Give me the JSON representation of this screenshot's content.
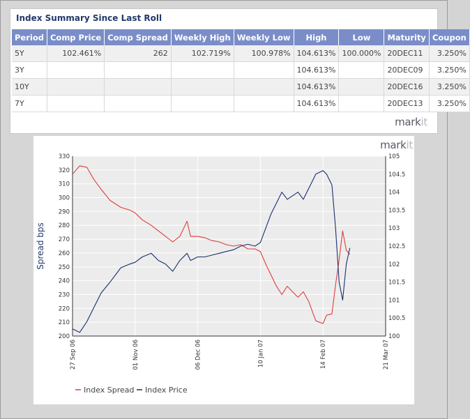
{
  "summary": {
    "title": "Index Summary Since Last Roll",
    "columns": [
      "Period",
      "Comp Price",
      "Comp Spread",
      "Weekly High",
      "Weekly Low",
      "High",
      "Low",
      "Maturity",
      "Coupon"
    ],
    "rows": [
      [
        "5Y",
        "102.461%",
        "262",
        "102.719%",
        "100.978%",
        "104.613%",
        "100.000%",
        "20DEC11",
        "3.250%"
      ],
      [
        "3Y",
        "",
        "",
        "",
        "",
        "104.613%",
        "",
        "20DEC09",
        "3.250%"
      ],
      [
        "10Y",
        "",
        "",
        "",
        "",
        "104.613%",
        "",
        "20DEC16",
        "3.250%"
      ],
      [
        "7Y",
        "",
        "",
        "",
        "",
        "104.613%",
        "",
        "20DEC13",
        "3.250%"
      ]
    ],
    "logo": {
      "prefix": "mark",
      "suffix": "it"
    }
  },
  "chart_logo": {
    "prefix": "mark",
    "suffix": "it"
  },
  "colors": {
    "spread": "#e03c3c",
    "price": "#1c2f6e",
    "header_bg": "#7a8dc8",
    "title": "#23396b"
  },
  "chart_data": {
    "type": "line",
    "ylabel": "Spread bps",
    "x_tick_labels": [
      "27 Sep 06",
      "01 Nov 06",
      "06 Dec 06",
      "10 Jan 07",
      "14 Feb 07",
      "21 Mar 07"
    ],
    "left_axis": {
      "min": 200,
      "max": 330,
      "ticks": [
        200,
        210,
        220,
        230,
        240,
        250,
        260,
        270,
        280,
        290,
        300,
        310,
        320,
        330
      ]
    },
    "right_axis": {
      "min": 100,
      "max": 105,
      "ticks": [
        100,
        100.5,
        101,
        101.5,
        102,
        102.5,
        103,
        103.5,
        104,
        104.5,
        105
      ]
    },
    "grid": true,
    "legend_position": "bottom-left",
    "series": [
      {
        "name": "Index Spread",
        "axis": "left",
        "points": [
          [
            "27 Sep 06",
            317
          ],
          [
            "01 Oct 06",
            323
          ],
          [
            "05 Oct 06",
            322
          ],
          [
            "09 Oct 06",
            313
          ],
          [
            "13 Oct 06",
            306
          ],
          [
            "18 Oct 06",
            298
          ],
          [
            "24 Oct 06",
            293
          ],
          [
            "29 Oct 06",
            291
          ],
          [
            "01 Nov 06",
            289
          ],
          [
            "05 Nov 06",
            284
          ],
          [
            "10 Nov 06",
            280
          ],
          [
            "14 Nov 06",
            276
          ],
          [
            "18 Nov 06",
            272
          ],
          [
            "22 Nov 06",
            268
          ],
          [
            "26 Nov 06",
            272
          ],
          [
            "30 Nov 06",
            283
          ],
          [
            "02 Dec 06",
            272
          ],
          [
            "06 Dec 06",
            272
          ],
          [
            "10 Dec 06",
            271
          ],
          [
            "14 Dec 06",
            269
          ],
          [
            "18 Dec 06",
            268
          ],
          [
            "22 Dec 06",
            266
          ],
          [
            "26 Dec 06",
            265
          ],
          [
            "30 Dec 06",
            266
          ],
          [
            "03 Jan 07",
            263
          ],
          [
            "07 Jan 07",
            263
          ],
          [
            "10 Jan 07",
            261
          ],
          [
            "13 Jan 07",
            252
          ],
          [
            "16 Jan 07",
            244
          ],
          [
            "19 Jan 07",
            236
          ],
          [
            "22 Jan 07",
            230
          ],
          [
            "25 Jan 07",
            236
          ],
          [
            "28 Jan 07",
            232
          ],
          [
            "31 Jan 07",
            228
          ],
          [
            "03 Feb 07",
            232
          ],
          [
            "06 Feb 07",
            225
          ],
          [
            "10 Feb 07",
            211
          ],
          [
            "14 Feb 07",
            209
          ],
          [
            "16 Feb 07",
            215
          ],
          [
            "19 Feb 07",
            216
          ],
          [
            "21 Feb 07",
            237
          ],
          [
            "23 Feb 07",
            255
          ],
          [
            "25 Feb 07",
            276
          ],
          [
            "27 Feb 07",
            262
          ],
          [
            "01 Mar 07",
            259
          ]
        ]
      },
      {
        "name": "Index Price",
        "axis": "right",
        "points": [
          [
            "27 Sep 06",
            100.2
          ],
          [
            "01 Oct 06",
            100.1
          ],
          [
            "05 Oct 06",
            100.4
          ],
          [
            "09 Oct 06",
            100.8
          ],
          [
            "13 Oct 06",
            101.2
          ],
          [
            "18 Oct 06",
            101.5
          ],
          [
            "24 Oct 06",
            101.9
          ],
          [
            "29 Oct 06",
            102.0
          ],
          [
            "01 Nov 06",
            102.05
          ],
          [
            "05 Nov 06",
            102.2
          ],
          [
            "10 Nov 06",
            102.3
          ],
          [
            "14 Nov 06",
            102.1
          ],
          [
            "18 Nov 06",
            102.0
          ],
          [
            "22 Nov 06",
            101.8
          ],
          [
            "26 Nov 06",
            102.1
          ],
          [
            "30 Nov 06",
            102.3
          ],
          [
            "02 Dec 06",
            102.1
          ],
          [
            "06 Dec 06",
            102.2
          ],
          [
            "10 Dec 06",
            102.2
          ],
          [
            "14 Dec 06",
            102.25
          ],
          [
            "18 Dec 06",
            102.3
          ],
          [
            "22 Dec 06",
            102.35
          ],
          [
            "26 Dec 06",
            102.4
          ],
          [
            "30 Dec 06",
            102.5
          ],
          [
            "03 Jan 07",
            102.55
          ],
          [
            "07 Jan 07",
            102.5
          ],
          [
            "10 Jan 07",
            102.6
          ],
          [
            "13 Jan 07",
            103.0
          ],
          [
            "16 Jan 07",
            103.4
          ],
          [
            "19 Jan 07",
            103.7
          ],
          [
            "22 Jan 07",
            104.0
          ],
          [
            "25 Jan 07",
            103.8
          ],
          [
            "28 Jan 07",
            103.9
          ],
          [
            "31 Jan 07",
            104.0
          ],
          [
            "03 Feb 07",
            103.8
          ],
          [
            "06 Feb 07",
            104.1
          ],
          [
            "10 Feb 07",
            104.5
          ],
          [
            "14 Feb 07",
            104.6
          ],
          [
            "16 Feb 07",
            104.5
          ],
          [
            "19 Feb 07",
            104.2
          ],
          [
            "21 Feb 07",
            103.0
          ],
          [
            "23 Feb 07",
            101.5
          ],
          [
            "25 Feb 07",
            101.0
          ],
          [
            "27 Feb 07",
            102.0
          ],
          [
            "01 Mar 07",
            102.45
          ]
        ]
      }
    ]
  }
}
